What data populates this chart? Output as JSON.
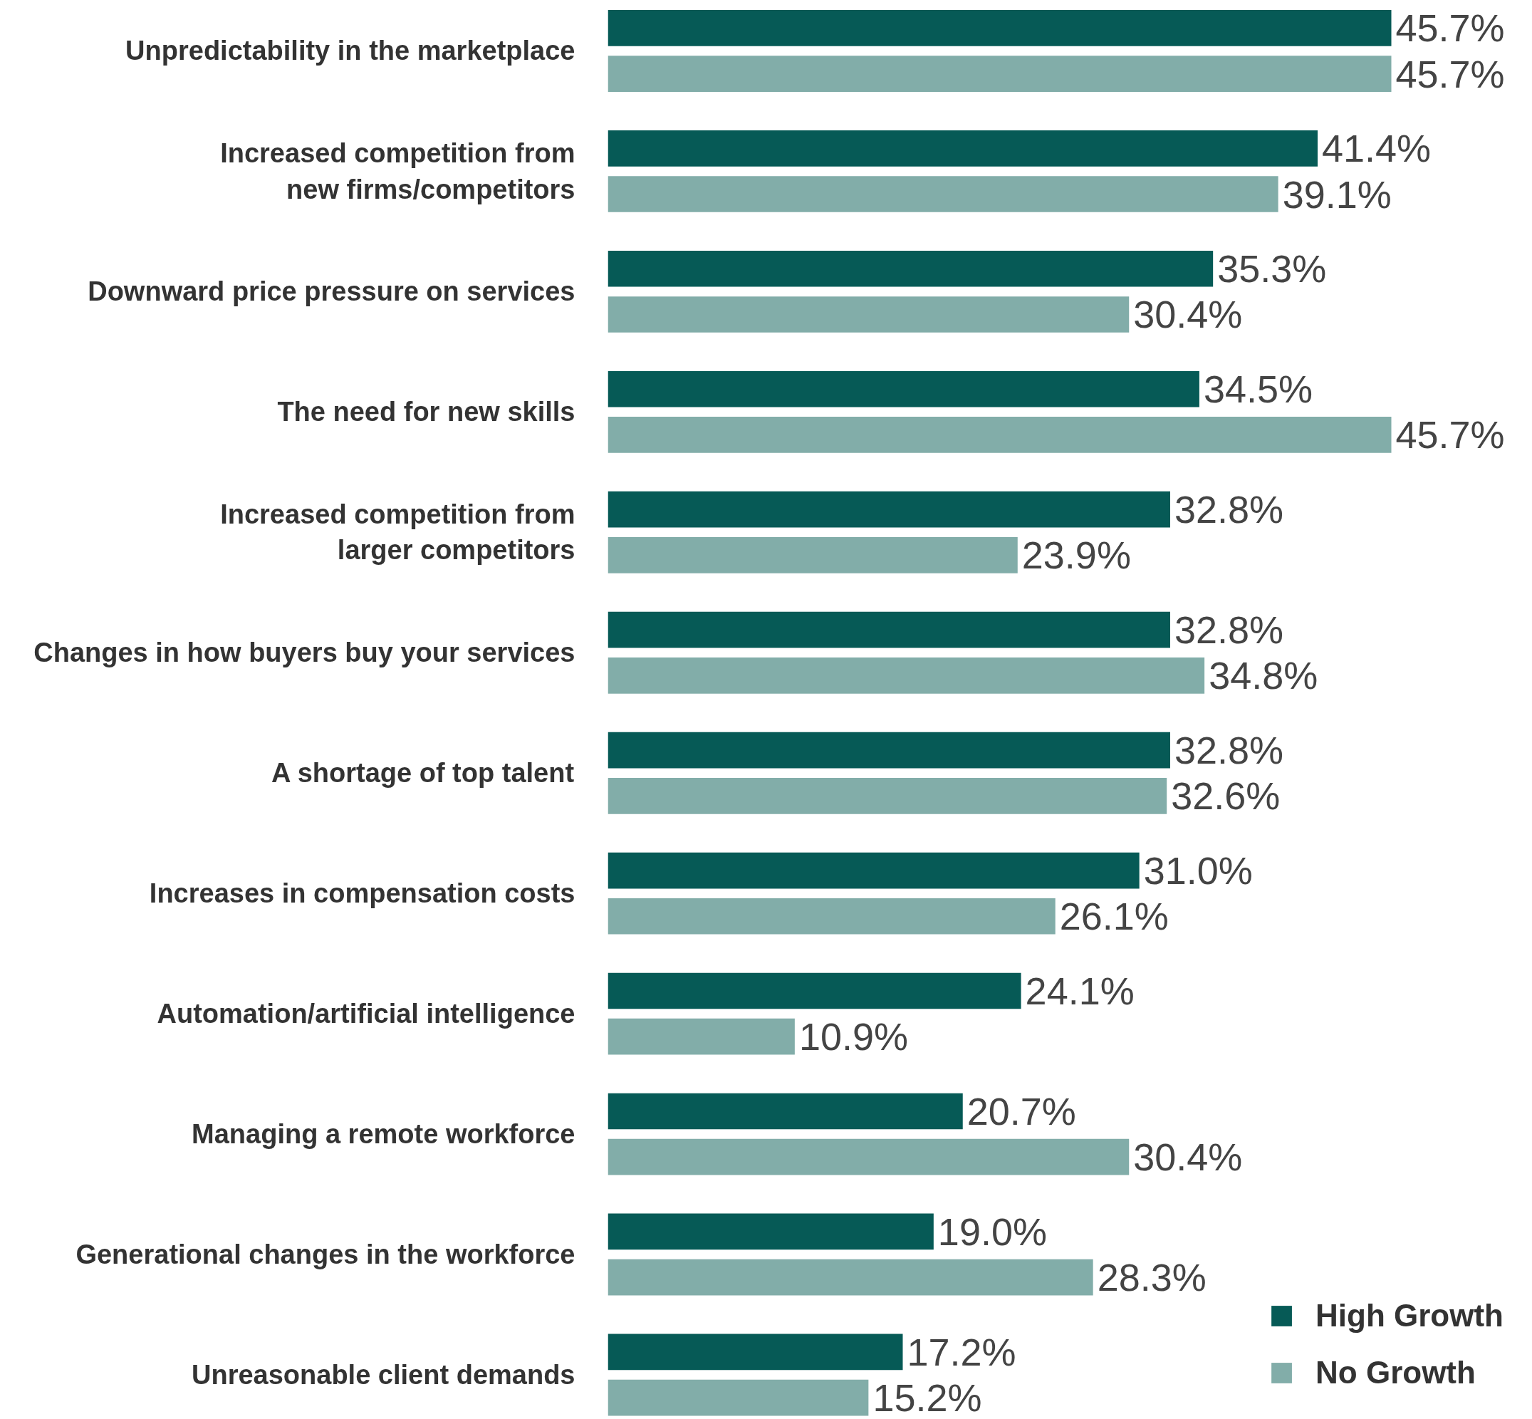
{
  "chart_data": {
    "type": "bar",
    "orientation": "horizontal",
    "categories": [
      "Unpredictability in the marketplace",
      "Increased competition from\nnew firms/competitors",
      "Downward price pressure on services",
      "The need for new skills",
      "Increased competition from\nlarger competitors",
      "Changes in how buyers buy your services",
      "A shortage of top talent",
      "Increases in compensation costs",
      "Automation/artificial intelligence",
      "Managing a remote workforce",
      "Generational changes in the workforce",
      "Unreasonable client demands"
    ],
    "series": [
      {
        "name": "High Growth",
        "color": "#065a56",
        "values": [
          45.7,
          41.4,
          35.3,
          34.5,
          32.8,
          32.8,
          32.8,
          31.0,
          24.1,
          20.7,
          19.0,
          17.2
        ],
        "value_labels": [
          "45.7%",
          "41.4%",
          "35.3%",
          "34.5%",
          "32.8%",
          "32.8%",
          "32.8%",
          "31.0%",
          "24.1%",
          "20.7%",
          "19.0%",
          "17.2%"
        ]
      },
      {
        "name": "No Growth",
        "color": "#82ada9",
        "values": [
          45.7,
          39.1,
          30.4,
          45.7,
          23.9,
          34.8,
          32.6,
          26.1,
          10.9,
          30.4,
          28.3,
          15.2
        ],
        "value_labels": [
          "45.7%",
          "39.1%",
          "30.4%",
          "45.7%",
          "23.9%",
          "34.8%",
          "32.6%",
          "26.1%",
          "10.9%",
          "30.4%",
          "28.3%",
          "15.2%"
        ]
      }
    ],
    "tick_labels": "y",
    "grid": false,
    "legend": "bottom right"
  }
}
